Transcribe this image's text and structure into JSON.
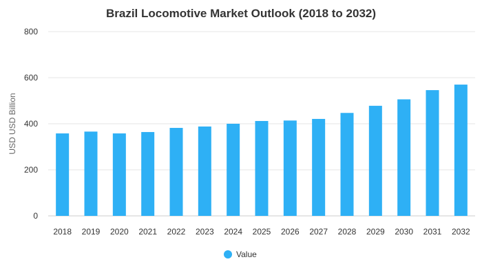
{
  "chart_data": {
    "type": "bar",
    "title": "Brazil Locomotive Market Outlook (2018 to 2032)",
    "xlabel": "",
    "ylabel": "USD USD Billion",
    "ylim": [
      0,
      800
    ],
    "yticks": [
      0,
      200,
      400,
      600,
      800
    ],
    "grid": true,
    "legend_position": "bottom",
    "categories": [
      "2018",
      "2019",
      "2020",
      "2021",
      "2022",
      "2023",
      "2024",
      "2025",
      "2026",
      "2027",
      "2028",
      "2029",
      "2030",
      "2031",
      "2032"
    ],
    "series": [
      {
        "name": "Value",
        "color": "#2eb0f5",
        "values": [
          358,
          366,
          358,
          364,
          382,
          388,
          400,
          412,
          414,
          421,
          447,
          478,
          506,
          546,
          570
        ]
      }
    ]
  }
}
